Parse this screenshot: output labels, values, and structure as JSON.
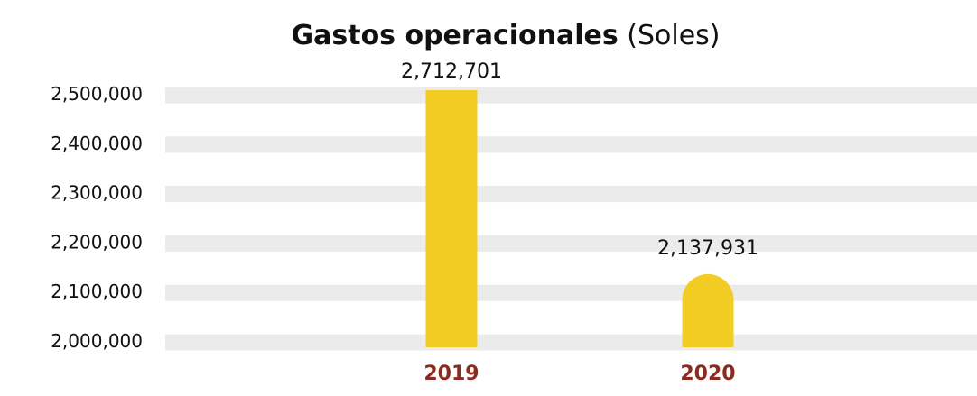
{
  "chart_data": {
    "type": "bar",
    "title": "Gastos operacionales",
    "unit": "(Soles)",
    "categories": [
      "2019",
      "2020"
    ],
    "values": [
      2712701,
      2137931
    ],
    "value_labels": [
      "2,712,701",
      "2,137,931"
    ],
    "color": "#f2cc22",
    "ylim": [
      1990000,
      2510000
    ],
    "yticks": [
      {
        "value": 2000000,
        "label": "2,000,000"
      },
      {
        "value": 2100000,
        "label": "2,100,000"
      },
      {
        "value": 2200000,
        "label": "2,200,000"
      },
      {
        "value": 2300000,
        "label": "2,300,000"
      },
      {
        "value": 2400000,
        "label": "2,400,000"
      },
      {
        "value": 2500000,
        "label": "2,500,000"
      }
    ],
    "grid": true
  }
}
